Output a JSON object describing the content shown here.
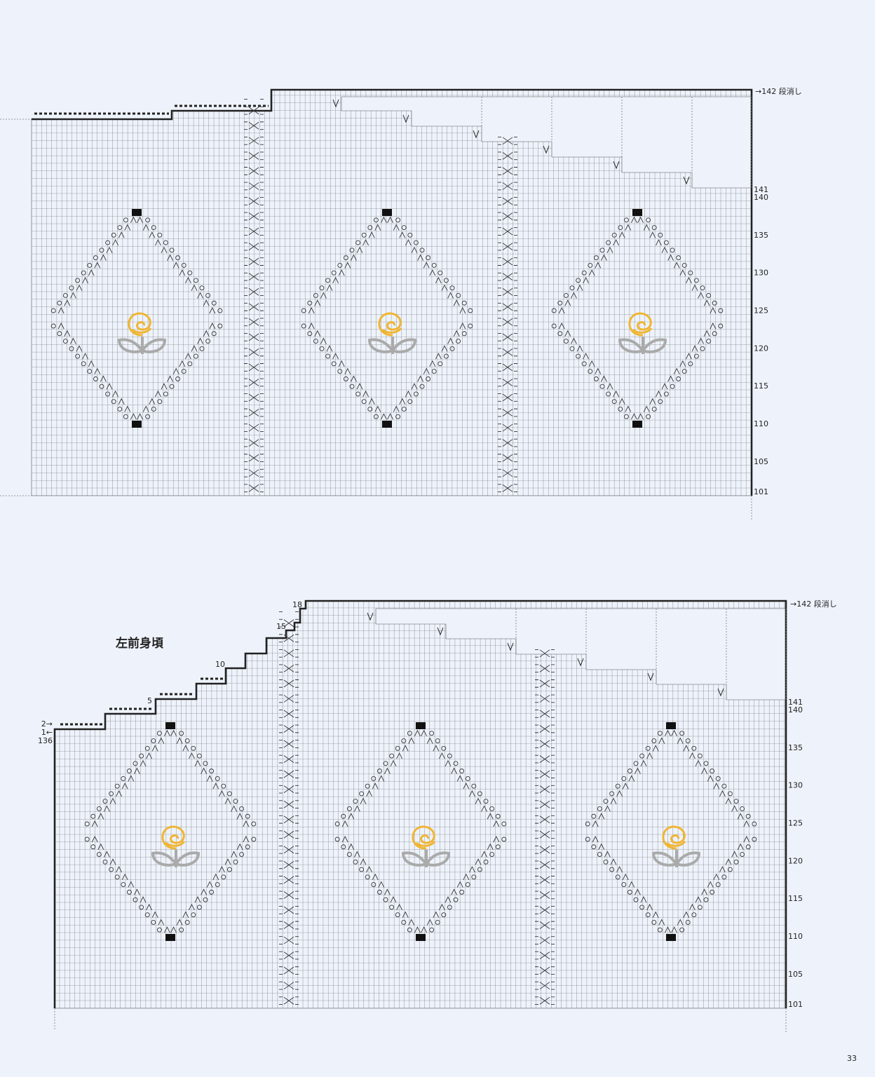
{
  "page_number": "33",
  "charts": [
    {
      "shift_label": "→142 段消し",
      "row_numbers": [
        141,
        140,
        135,
        130,
        125,
        120,
        115,
        110,
        105,
        101
      ]
    },
    {
      "title": "左前身頃",
      "shift_label": "→142 段消し",
      "row_numbers": [
        141,
        140,
        135,
        130,
        125,
        120,
        115,
        110,
        105,
        101
      ],
      "step_labels": [
        18,
        15,
        10,
        5
      ],
      "start_labels": [
        "2→",
        "1←",
        136
      ]
    }
  ]
}
